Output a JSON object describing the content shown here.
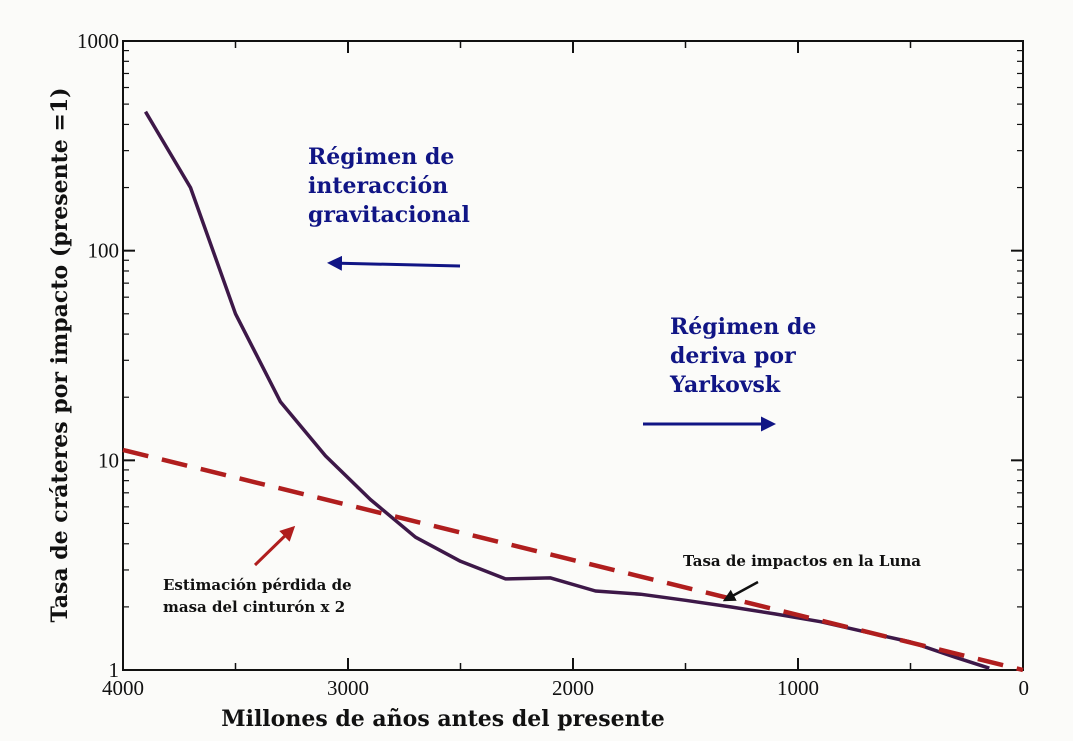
{
  "chart_data": {
    "type": "line",
    "xlabel": "Millones de años antes del presente",
    "ylabel": "Tasa de cráteres por impacto (presente =1)",
    "xlim": [
      4000,
      0
    ],
    "ylim": [
      1,
      1000
    ],
    "yscale": "log",
    "x_ticks": [
      4000,
      3000,
      2000,
      1000,
      0
    ],
    "y_ticks": [
      1,
      10,
      100,
      1000
    ],
    "x_tick_labels": [
      "4000",
      "3000",
      "2000",
      "1000",
      "0"
    ],
    "y_tick_labels": [
      "1",
      "10",
      "100",
      "1000"
    ],
    "grid": false,
    "series": [
      {
        "style": "solid",
        "color": "#3d1848",
        "x": [
          3900,
          3700,
          3500,
          3300,
          3100,
          2900,
          2700,
          2500,
          2300,
          2100,
          1900,
          1700,
          1500,
          1300,
          1100,
          900,
          700,
          500,
          300,
          150
        ],
        "y": [
          460,
          200,
          50,
          19,
          10.5,
          6.5,
          4.3,
          3.3,
          2.72,
          2.75,
          2.38,
          2.3,
          2.15,
          2.0,
          1.85,
          1.7,
          1.52,
          1.36,
          1.15,
          1.02
        ]
      },
      {
        "style": "dashed",
        "color": "#b01e1e",
        "x": [
          4000,
          0
        ],
        "y": [
          11.2,
          1.0
        ]
      }
    ],
    "annotations": [
      {
        "id": "regime-gravitational",
        "lines": [
          "Régimen de",
          "interacción",
          "gravitacional"
        ],
        "color": "#101585"
      },
      {
        "id": "regime-yarkovsky",
        "lines": [
          "Régimen de",
          "deriva por",
          "Yarkovsk"
        ],
        "color": "#101585"
      },
      {
        "id": "belt-estimate",
        "lines": [
          "Estimación pérdida de",
          "masa del cinturón x 2"
        ],
        "color": "#111111"
      },
      {
        "id": "lunar-rate",
        "lines": [
          "Tasa de impactos en la Luna"
        ],
        "color": "#111111"
      }
    ]
  }
}
